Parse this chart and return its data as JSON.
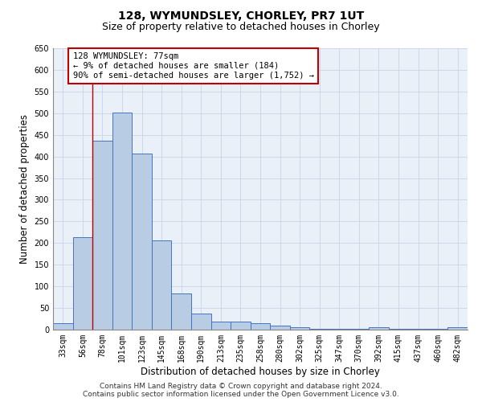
{
  "title": "128, WYMUNDSLEY, CHORLEY, PR7 1UT",
  "subtitle": "Size of property relative to detached houses in Chorley",
  "xlabel": "Distribution of detached houses by size in Chorley",
  "ylabel": "Number of detached properties",
  "categories": [
    "33sqm",
    "56sqm",
    "78sqm",
    "101sqm",
    "123sqm",
    "145sqm",
    "168sqm",
    "190sqm",
    "213sqm",
    "235sqm",
    "258sqm",
    "280sqm",
    "302sqm",
    "325sqm",
    "347sqm",
    "370sqm",
    "392sqm",
    "415sqm",
    "437sqm",
    "460sqm",
    "482sqm"
  ],
  "values": [
    15,
    213,
    437,
    502,
    407,
    207,
    84,
    38,
    19,
    19,
    15,
    10,
    6,
    1,
    1,
    1,
    5,
    1,
    1,
    1,
    5
  ],
  "bar_color": "#b8cce4",
  "bar_edge_color": "#4472c4",
  "bar_linewidth": 0.7,
  "vline_index": 2,
  "vline_color": "#c00000",
  "annotation_line1": "128 WYMUNDSLEY: 77sqm",
  "annotation_line2": "← 9% of detached houses are smaller (184)",
  "annotation_line3": "90% of semi-detached houses are larger (1,752) →",
  "annotation_box_color": "white",
  "annotation_box_edge": "#c00000",
  "ylim": [
    0,
    650
  ],
  "yticks": [
    0,
    50,
    100,
    150,
    200,
    250,
    300,
    350,
    400,
    450,
    500,
    550,
    600,
    650
  ],
  "grid_color": "#c8d4e8",
  "bg_color": "#eaf0f8",
  "footer_line1": "Contains HM Land Registry data © Crown copyright and database right 2024.",
  "footer_line2": "Contains public sector information licensed under the Open Government Licence v3.0.",
  "title_fontsize": 10,
  "subtitle_fontsize": 9,
  "axis_label_fontsize": 8.5,
  "tick_fontsize": 7,
  "annotation_fontsize": 7.5,
  "footer_fontsize": 6.5
}
